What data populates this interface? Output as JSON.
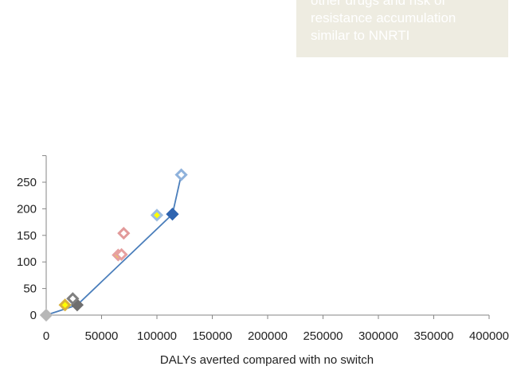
{
  "chart_data": {
    "type": "scatter",
    "title": "",
    "xlabel": "DALYs averted compared with no switch",
    "ylabel": "",
    "xlim": [
      0,
      400000
    ],
    "ylim": [
      0,
      300
    ],
    "x_ticks": [
      "0",
      "50000",
      "100000",
      "150000",
      "200000",
      "250000",
      "300000",
      "350000",
      "400000"
    ],
    "y_ticks": [
      "0",
      "50",
      "100",
      "150",
      "200",
      "250"
    ],
    "grid": false,
    "series": [
      {
        "type": "line",
        "color": "#4a7ebb",
        "points": [
          [
            0,
            0
          ],
          [
            28000,
            19
          ],
          [
            114000,
            190
          ],
          [
            122000,
            264
          ]
        ]
      },
      {
        "type": "markers",
        "marker": "diamond",
        "points": [
          {
            "x": 0,
            "y": 0,
            "stroke": "#b7b7b7",
            "fill": "#b7b7b7"
          },
          {
            "x": 17000,
            "y": 19,
            "stroke": "#d9b13b",
            "fill": "#ffff00"
          },
          {
            "x": 28000,
            "y": 19,
            "stroke": "#6e6e6e",
            "fill": "#6e6e6e"
          },
          {
            "x": 24000,
            "y": 31,
            "stroke": "#7f7f7f",
            "fill": "#ffffff"
          },
          {
            "x": 65000,
            "y": 113,
            "stroke": "#e6a0a0",
            "fill": "#ffff00"
          },
          {
            "x": 68000,
            "y": 114,
            "stroke": "#e6a0a0",
            "fill": "#ffffff"
          },
          {
            "x": 70000,
            "y": 154,
            "stroke": "#e29a9a",
            "fill": "#ffffff"
          },
          {
            "x": 100000,
            "y": 188,
            "stroke": "#9dbde0",
            "fill": "#ffff00"
          },
          {
            "x": 114000,
            "y": 190,
            "stroke": "#2e64b0",
            "fill": "#2e64b0"
          },
          {
            "x": 122000,
            "y": 264,
            "stroke": "#8fb2dc",
            "fill": "#ffffff"
          }
        ]
      }
    ],
    "annotation": {
      "lines": [
        "other drugs and risk of",
        "resistance accumulation",
        "similar to NNRTI"
      ],
      "background": "#eeece1",
      "text_color": "#ffffff"
    },
    "axis_color": "#868686"
  }
}
